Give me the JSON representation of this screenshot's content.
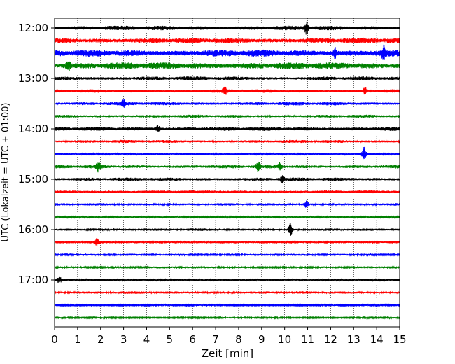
{
  "chart_data": {
    "type": "line",
    "title": "",
    "xlabel": "Zeit  [min]",
    "ylabel": "UTC (Lokalzeit = UTC + 01:00)",
    "xlim": [
      0,
      15
    ],
    "x_ticks": [
      "0",
      "1",
      "2",
      "3",
      "4",
      "5",
      "6",
      "7",
      "8",
      "9",
      "10",
      "11",
      "12",
      "13",
      "14",
      "15"
    ],
    "y_ticks": [
      "12:00",
      "13:00",
      "14:00",
      "15:00",
      "16:00",
      "17:00"
    ],
    "grid": "vertical dotted",
    "trace_interval_min": 15,
    "traces": [
      {
        "start": "12:00",
        "color": "#000000",
        "amplitude": 0.45,
        "events": [
          {
            "t": 10.95,
            "a": 1.1
          }
        ]
      },
      {
        "start": "12:15",
        "color": "#ff0000",
        "amplitude": 0.55,
        "events": []
      },
      {
        "start": "12:30",
        "color": "#0000ff",
        "amplitude": 0.7,
        "events": [
          {
            "t": 12.2,
            "a": 0.9
          },
          {
            "t": 14.3,
            "a": 1.0
          }
        ]
      },
      {
        "start": "12:45",
        "color": "#008000",
        "amplitude": 0.7,
        "events": [
          {
            "t": 0.6,
            "a": 0.9
          }
        ]
      },
      {
        "start": "13:00",
        "color": "#000000",
        "amplitude": 0.4,
        "events": []
      },
      {
        "start": "13:15",
        "color": "#ff0000",
        "amplitude": 0.35,
        "events": [
          {
            "t": 7.4,
            "a": 0.7
          },
          {
            "t": 13.5,
            "a": 0.6
          }
        ]
      },
      {
        "start": "13:30",
        "color": "#0000ff",
        "amplitude": 0.35,
        "events": [
          {
            "t": 3.0,
            "a": 0.6
          }
        ]
      },
      {
        "start": "13:45",
        "color": "#008000",
        "amplitude": 0.3,
        "events": []
      },
      {
        "start": "14:00",
        "color": "#000000",
        "amplitude": 0.4,
        "events": [
          {
            "t": 4.5,
            "a": 0.6
          }
        ]
      },
      {
        "start": "14:15",
        "color": "#ff0000",
        "amplitude": 0.3,
        "events": []
      },
      {
        "start": "14:30",
        "color": "#0000ff",
        "amplitude": 0.25,
        "events": [
          {
            "t": 13.45,
            "a": 1.3
          }
        ]
      },
      {
        "start": "14:45",
        "color": "#008000",
        "amplitude": 0.35,
        "events": [
          {
            "t": 1.9,
            "a": 0.8
          },
          {
            "t": 8.85,
            "a": 1.0
          },
          {
            "t": 9.8,
            "a": 0.7
          }
        ]
      },
      {
        "start": "15:00",
        "color": "#000000",
        "amplitude": 0.35,
        "events": [
          {
            "t": 9.9,
            "a": 0.6
          }
        ]
      },
      {
        "start": "15:15",
        "color": "#ff0000",
        "amplitude": 0.3,
        "events": []
      },
      {
        "start": "15:30",
        "color": "#0000ff",
        "amplitude": 0.25,
        "events": [
          {
            "t": 10.95,
            "a": 0.6
          }
        ]
      },
      {
        "start": "15:45",
        "color": "#008000",
        "amplitude": 0.2,
        "events": []
      },
      {
        "start": "16:00",
        "color": "#000000",
        "amplitude": 0.25,
        "events": [
          {
            "t": 10.25,
            "a": 1.2
          }
        ]
      },
      {
        "start": "16:15",
        "color": "#ff0000",
        "amplitude": 0.25,
        "events": [
          {
            "t": 1.85,
            "a": 0.7
          }
        ]
      },
      {
        "start": "16:30",
        "color": "#0000ff",
        "amplitude": 0.2,
        "events": []
      },
      {
        "start": "16:45",
        "color": "#008000",
        "amplitude": 0.2,
        "events": []
      },
      {
        "start": "17:00",
        "color": "#000000",
        "amplitude": 0.25,
        "events": [
          {
            "t": 0.2,
            "a": 0.6
          }
        ]
      },
      {
        "start": "17:15",
        "color": "#ff0000",
        "amplitude": 0.25,
        "events": []
      },
      {
        "start": "17:30",
        "color": "#0000ff",
        "amplitude": 0.15,
        "events": []
      },
      {
        "start": "17:45",
        "color": "#008000",
        "amplitude": 0.15,
        "events": []
      }
    ]
  }
}
